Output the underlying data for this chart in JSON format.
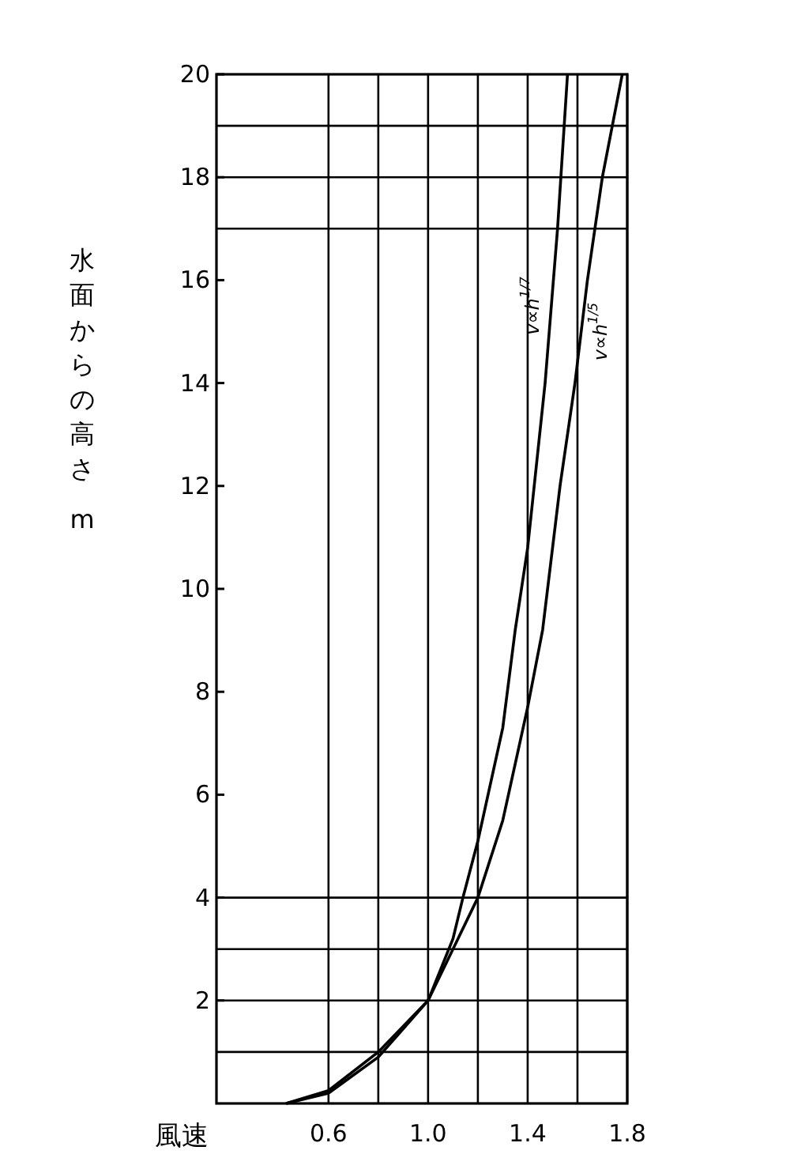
{
  "chart_data": {
    "type": "line",
    "xlabel": "風速",
    "ylabel": "水面からの高さ m",
    "xlim": [
      0.15,
      1.8
    ],
    "ylim": [
      0,
      20
    ],
    "xticks": [
      0.6,
      {
        "value": 0.8,
        "label": null
      },
      {
        "value": 1.0,
        "label": "1.0"
      },
      {
        "value": 1.2,
        "label": null
      },
      1.4,
      {
        "value": 1.6,
        "label": null
      },
      1.8
    ],
    "yticks": [
      2,
      4,
      6,
      8,
      10,
      12,
      14,
      16,
      18,
      20
    ],
    "grid": "x",
    "marker": "none",
    "line_style": "solid",
    "ref_lines": [
      {
        "axis": "y",
        "value": 1,
        "label": null
      },
      {
        "axis": "y",
        "value": 2,
        "label": null
      },
      {
        "axis": "y",
        "value": 3,
        "label": null
      },
      {
        "axis": "y",
        "value": 4,
        "label": null
      },
      {
        "axis": "y",
        "value": 17,
        "label": null
      },
      {
        "axis": "y",
        "value": 18,
        "label": null
      },
      {
        "axis": "y",
        "value": 19,
        "label": null
      }
    ],
    "series": [
      {
        "color": "#000000",
        "x": [
          0.43,
          0.6,
          0.8,
          1.0,
          1.1,
          1.14,
          1.2,
          1.3,
          1.35,
          1.4,
          1.47,
          1.52,
          1.56
        ],
        "values": [
          0,
          0.2,
          0.9,
          2,
          3.2,
          4,
          5.1,
          7.3,
          9.2,
          10.8,
          14,
          17,
          20
        ]
      },
      {
        "color": "#000000",
        "x": [
          0.43,
          0.6,
          0.8,
          1.0,
          1.1,
          1.2,
          1.3,
          1.4,
          1.46,
          1.53,
          1.59,
          1.64,
          1.7,
          1.78
        ],
        "values": [
          0,
          0.25,
          1.0,
          2,
          3,
          4,
          5.5,
          7.7,
          9.2,
          12,
          14,
          16,
          18,
          20
        ]
      }
    ],
    "annotations": [
      "v∝h$^{1/7}$",
      "v∝h$^{1/5}$"
    ]
  }
}
